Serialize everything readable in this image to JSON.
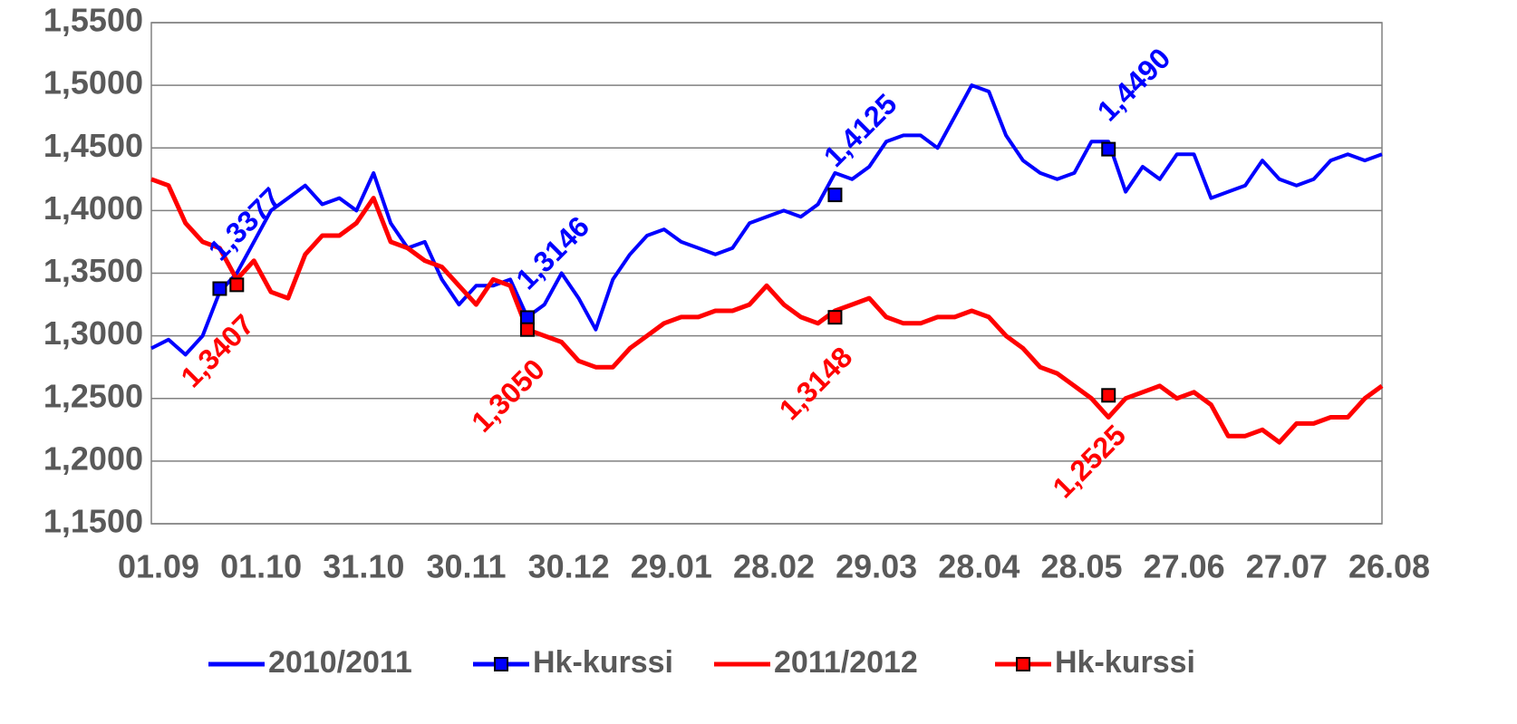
{
  "chart_data": {
    "type": "line",
    "categories": [
      "01.09",
      null,
      null,
      null,
      null,
      null,
      "01.10",
      null,
      null,
      null,
      null,
      null,
      "31.10",
      null,
      null,
      null,
      null,
      null,
      "30.11",
      null,
      null,
      null,
      null,
      null,
      "30.12",
      null,
      null,
      null,
      null,
      null,
      "29.01",
      null,
      null,
      null,
      null,
      null,
      "28.02",
      null,
      null,
      null,
      null,
      null,
      "29.03",
      null,
      null,
      null,
      null,
      null,
      "28.04",
      null,
      null,
      null,
      null,
      null,
      "28.05",
      null,
      null,
      null,
      null,
      null,
      "27.06",
      null,
      null,
      null,
      null,
      null,
      "27.07",
      null,
      null,
      null,
      null,
      null,
      "26.08"
    ],
    "series": [
      {
        "name": "2010/2011",
        "color": "#0000ff",
        "values": [
          1.29,
          1.297,
          1.285,
          1.3,
          1.335,
          1.35,
          1.375,
          1.4,
          1.41,
          1.42,
          1.405,
          1.41,
          1.4,
          1.43,
          1.39,
          1.37,
          1.375,
          1.345,
          1.325,
          1.34,
          1.34,
          1.345,
          1.315,
          1.325,
          1.35,
          1.33,
          1.305,
          1.345,
          1.365,
          1.38,
          1.385,
          1.375,
          1.37,
          1.365,
          1.37,
          1.39,
          1.395,
          1.4,
          1.395,
          1.405,
          1.43,
          1.425,
          1.435,
          1.455,
          1.46,
          1.46,
          1.45,
          1.475,
          1.5,
          1.495,
          1.46,
          1.44,
          1.43,
          1.425,
          1.43,
          1.455,
          1.455,
          1.415,
          1.435,
          1.425,
          1.445,
          1.445,
          1.41,
          1.415,
          1.42,
          1.44,
          1.425,
          1.42,
          1.425,
          1.44,
          1.445,
          1.44,
          1.445
        ]
      },
      {
        "name": "Hk-kurssi",
        "color": "#0000ff",
        "marker": "square",
        "values": [
          null,
          null,
          null,
          null,
          1.3377,
          null,
          null,
          null,
          null,
          null,
          null,
          null,
          null,
          null,
          null,
          null,
          null,
          null,
          null,
          null,
          null,
          null,
          1.3146,
          null,
          null,
          null,
          null,
          null,
          null,
          null,
          null,
          null,
          null,
          null,
          null,
          null,
          null,
          null,
          null,
          null,
          1.4125,
          null,
          null,
          null,
          null,
          null,
          null,
          null,
          null,
          null,
          null,
          null,
          null,
          null,
          null,
          null,
          1.449,
          null,
          null,
          null,
          null,
          null,
          null,
          null,
          null,
          null,
          null,
          null,
          null,
          null,
          null,
          null,
          null
        ],
        "value_labels": [
          null,
          null,
          null,
          null,
          "1,3377",
          null,
          null,
          null,
          null,
          null,
          null,
          null,
          null,
          null,
          null,
          null,
          null,
          null,
          null,
          null,
          null,
          null,
          "1,3146",
          null,
          null,
          null,
          null,
          null,
          null,
          null,
          null,
          null,
          null,
          null,
          null,
          null,
          null,
          null,
          null,
          null,
          "1,4125",
          null,
          null,
          null,
          null,
          null,
          null,
          null,
          null,
          null,
          null,
          null,
          null,
          null,
          null,
          null,
          "1,4490",
          null,
          null,
          null,
          null,
          null,
          null,
          null,
          null,
          null,
          null,
          null,
          null,
          null,
          null,
          null,
          null
        ]
      },
      {
        "name": "2011/2012",
        "color": "#ff0000",
        "values": [
          1.425,
          1.42,
          1.39,
          1.375,
          1.37,
          1.345,
          1.36,
          1.335,
          1.33,
          1.365,
          1.38,
          1.38,
          1.39,
          1.41,
          1.375,
          1.37,
          1.36,
          1.355,
          1.34,
          1.325,
          1.345,
          1.34,
          1.305,
          1.3,
          1.295,
          1.28,
          1.275,
          1.275,
          1.29,
          1.3,
          1.31,
          1.315,
          1.315,
          1.32,
          1.32,
          1.325,
          1.34,
          1.325,
          1.315,
          1.31,
          1.32,
          1.325,
          1.33,
          1.315,
          1.31,
          1.31,
          1.315,
          1.315,
          1.32,
          1.315,
          1.3,
          1.29,
          1.275,
          1.27,
          1.26,
          1.25,
          1.235,
          1.25,
          1.255,
          1.26,
          1.25,
          1.255,
          1.245,
          1.22,
          1.22,
          1.225,
          1.215,
          1.23,
          1.23,
          1.235,
          1.235,
          1.25,
          1.26
        ]
      },
      {
        "name": "Hk-kurssi",
        "color": "#ff0000",
        "marker": "square",
        "values": [
          null,
          null,
          null,
          null,
          null,
          1.3407,
          null,
          null,
          null,
          null,
          null,
          null,
          null,
          null,
          null,
          null,
          null,
          null,
          null,
          null,
          null,
          null,
          1.305,
          null,
          null,
          null,
          null,
          null,
          null,
          null,
          null,
          null,
          null,
          null,
          null,
          null,
          null,
          null,
          null,
          null,
          1.3148,
          null,
          null,
          null,
          null,
          null,
          null,
          null,
          null,
          null,
          null,
          null,
          null,
          null,
          null,
          null,
          1.2525,
          null,
          null,
          null,
          null,
          null,
          null,
          null,
          null,
          null,
          null,
          null,
          null,
          null,
          null,
          null,
          null
        ],
        "value_labels": [
          null,
          null,
          null,
          null,
          null,
          "1,3407",
          null,
          null,
          null,
          null,
          null,
          null,
          null,
          null,
          null,
          null,
          null,
          null,
          null,
          null,
          null,
          null,
          "1,3050",
          null,
          null,
          null,
          null,
          null,
          null,
          null,
          null,
          null,
          null,
          null,
          null,
          null,
          null,
          null,
          null,
          null,
          "1,3148",
          null,
          null,
          null,
          null,
          null,
          null,
          null,
          null,
          null,
          null,
          null,
          null,
          null,
          null,
          null,
          "1,2525",
          null,
          null,
          null,
          null,
          null,
          null,
          null,
          null,
          null,
          null,
          null,
          null,
          null,
          null,
          null,
          null
        ]
      }
    ],
    "ylim": [
      1.15,
      1.55
    ],
    "yticks": [
      {
        "value": 1.15,
        "label": "1,1500"
      },
      {
        "value": 1.2,
        "label": "1,2000"
      },
      {
        "value": 1.25,
        "label": "1,2500"
      },
      {
        "value": 1.3,
        "label": "1,3000"
      },
      {
        "value": 1.35,
        "label": "1,3500"
      },
      {
        "value": 1.4,
        "label": "1,4000"
      },
      {
        "value": 1.45,
        "label": "1,4500"
      },
      {
        "value": 1.5,
        "label": "1,5000"
      },
      {
        "value": 1.55,
        "label": "1,5500"
      }
    ],
    "grid": true,
    "legend": "bottom"
  }
}
